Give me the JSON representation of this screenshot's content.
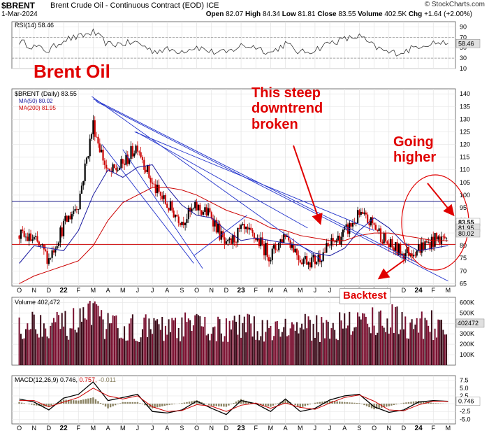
{
  "header": {
    "symbol": "$BRENT",
    "name": "Brent Crude Oil - Continuous Contract (EOD)",
    "exchange": "ICE",
    "date": "1-Mar-2024",
    "open_label": "Open",
    "open": "82.07",
    "high_label": "High",
    "high": "84.34",
    "low_label": "Low",
    "low": "81.81",
    "close_label": "Close",
    "close": "83.55",
    "volume_label": "Volume",
    "volume": "402.5K",
    "chg_label": "Chg",
    "chg": "+1.64 (+2.00%)",
    "watermark": "© StockCharts.com"
  },
  "annotations": {
    "brent": "Brent Oil",
    "steep_l1": "This steep",
    "steep_l2": "downtrend",
    "steep_l3": "broken",
    "going_l1": "Going",
    "going_l2": "higher",
    "backtest": "Backtest"
  },
  "colors": {
    "price": "#000000",
    "up_candle": "#000000",
    "down_candle": "#cc0000",
    "ma50": "#1a1aa0",
    "ma200": "#cc0000",
    "trendline": "#2233cc",
    "annotation": "#e00000",
    "volume_bar": "#7a1030",
    "macd": "#000000",
    "macd_signal": "#cc0000",
    "histogram": "#8a8262",
    "tag_bg": "#e0e0e0"
  },
  "chart_data": [
    {
      "type": "line",
      "title": "RSI(14) 58.46",
      "indicator": "RSI(14)",
      "last_value": "58.46",
      "ylim": [
        10,
        100
      ],
      "yticks": [
        "90",
        "70",
        "50",
        "30",
        "10"
      ],
      "reference_levels": [
        70,
        30
      ],
      "x": [
        "2021-10",
        "2021-11",
        "2021-12",
        "2022-01",
        "2022-02",
        "2022-03",
        "2022-04",
        "2022-05",
        "2022-06",
        "2022-07",
        "2022-08",
        "2022-09",
        "2022-10",
        "2022-11",
        "2022-12",
        "2023-01",
        "2023-02",
        "2023-03",
        "2023-04",
        "2023-05",
        "2023-06",
        "2023-07",
        "2023-08",
        "2023-09",
        "2023-10",
        "2023-11",
        "2023-12",
        "2024-01",
        "2024-02",
        "2024-03"
      ],
      "values": [
        62,
        52,
        44,
        66,
        70,
        80,
        56,
        58,
        60,
        44,
        46,
        44,
        52,
        42,
        40,
        54,
        52,
        40,
        58,
        40,
        46,
        60,
        66,
        72,
        52,
        40,
        42,
        54,
        60,
        58
      ]
    },
    {
      "type": "line",
      "title": "$BRENT (Daily) 83.55",
      "legend": [
        {
          "name": "$BRENT (Daily) 83.55"
        },
        {
          "name": "MA(50) 80.02"
        },
        {
          "name": "MA(200) 81.95"
        }
      ],
      "ylim": [
        64,
        142
      ],
      "yticks": [
        "140",
        "135",
        "130",
        "125",
        "120",
        "115",
        "110",
        "105",
        "100",
        "95",
        "90",
        "85",
        "80",
        "75",
        "70",
        "65"
      ],
      "last_value_tags": [
        "83.55",
        "81.95",
        "80.02"
      ],
      "horizontal_levels": [
        97.5,
        80.5
      ],
      "x": [
        "2021-10",
        "2021-11",
        "2021-12",
        "2022-01",
        "2022-02",
        "2022-03",
        "2022-04",
        "2022-05",
        "2022-06",
        "2022-07",
        "2022-08",
        "2022-09",
        "2022-10",
        "2022-11",
        "2022-12",
        "2023-01",
        "2023-02",
        "2023-03",
        "2023-04",
        "2023-05",
        "2023-06",
        "2023-07",
        "2023-08",
        "2023-09",
        "2023-10",
        "2023-11",
        "2023-12",
        "2024-01",
        "2024-02",
        "2024-03"
      ],
      "series": [
        {
          "name": "$BRENT (Daily) 83.55",
          "values": [
            84,
            82,
            75,
            88,
            97,
            128,
            108,
            112,
            120,
            104,
            96,
            90,
            95,
            92,
            79,
            86,
            83,
            76,
            85,
            75,
            74,
            80,
            85,
            92,
            88,
            80,
            77,
            79,
            82,
            83.55
          ]
        },
        {
          "name": "MA(50) 80.02",
          "values": [
            73,
            80,
            79,
            78,
            86,
            100,
            110,
            107,
            111,
            112,
            103,
            96,
            92,
            91,
            86,
            82,
            83,
            82,
            81,
            80,
            77,
            76,
            79,
            86,
            91,
            87,
            81,
            78,
            79,
            80.02
          ]
        },
        {
          "name": "MA(200) 81.95",
          "values": [
            65,
            68,
            70,
            72,
            74,
            80,
            90,
            97,
            100,
            103,
            103,
            102,
            100,
            97,
            94,
            92,
            90,
            87,
            86,
            84,
            83,
            82,
            82,
            84,
            85,
            85,
            84,
            83,
            82,
            81.95
          ]
        }
      ],
      "xticks": [
        "O",
        "N",
        "D",
        "22",
        "F",
        "M",
        "A",
        "M",
        "J",
        "J",
        "A",
        "S",
        "O",
        "N",
        "D",
        "23",
        "F",
        "M",
        "A",
        "M",
        "J",
        "J",
        "A",
        "S",
        "O",
        "N",
        "D",
        "24",
        "F",
        "M"
      ]
    },
    {
      "type": "bar",
      "title": "Volume 402,472",
      "indicator": "Volume",
      "last_value": "402472",
      "ylim": [
        0,
        650000
      ],
      "yticks": [
        "600K",
        "500K",
        "400K",
        "300K",
        "200K",
        "100K"
      ],
      "categories": [
        "2021-10",
        "2021-11",
        "2021-12",
        "2022-01",
        "2022-02",
        "2022-03",
        "2022-04",
        "2022-05",
        "2022-06",
        "2022-07",
        "2022-08",
        "2022-09",
        "2022-10",
        "2022-11",
        "2022-12",
        "2023-01",
        "2023-02",
        "2023-03",
        "2023-04",
        "2023-05",
        "2023-06",
        "2023-07",
        "2023-08",
        "2023-09",
        "2023-10",
        "2023-11",
        "2023-12",
        "2024-01",
        "2024-02",
        "2024-03"
      ],
      "values": [
        400000,
        410000,
        430000,
        380000,
        420000,
        470000,
        380000,
        360000,
        370000,
        360000,
        350000,
        370000,
        390000,
        360000,
        350000,
        370000,
        360000,
        380000,
        360000,
        370000,
        360000,
        380000,
        400000,
        420000,
        440000,
        450000,
        410000,
        420000,
        400000,
        402472
      ]
    },
    {
      "type": "line",
      "title": "MACD(12,26,9) 0.746, 0.757, -0.011",
      "indicator": "MACD(12,26,9)",
      "macd": "0.746",
      "signal": "0.757",
      "histogram": "-0.011",
      "ylim": [
        -6.5,
        9
      ],
      "yticks": [
        "7.5",
        "5.0",
        "2.5",
        "0.0",
        "-2.5",
        "-5.0"
      ],
      "last_value_tag": "0.746",
      "x": [
        "2021-10",
        "2021-11",
        "2021-12",
        "2022-01",
        "2022-02",
        "2022-03",
        "2022-04",
        "2022-05",
        "2022-06",
        "2022-07",
        "2022-08",
        "2022-09",
        "2022-10",
        "2022-11",
        "2022-12",
        "2023-01",
        "2023-02",
        "2023-03",
        "2023-04",
        "2023-05",
        "2023-06",
        "2023-07",
        "2023-08",
        "2023-09",
        "2023-10",
        "2023-11",
        "2023-12",
        "2024-01",
        "2024-02",
        "2024-03"
      ],
      "series": [
        {
          "name": "MACD",
          "values": [
            1.5,
            0.5,
            -2.0,
            1.8,
            3.0,
            7.0,
            1.0,
            2.0,
            3.0,
            -2.5,
            -3.0,
            -2.0,
            0.8,
            -1.5,
            -3.5,
            1.0,
            0.0,
            -2.5,
            1.5,
            -2.5,
            -1.5,
            1.2,
            2.5,
            3.0,
            -1.0,
            -2.8,
            -2.0,
            0.5,
            1.0,
            0.746
          ]
        },
        {
          "name": "Signal",
          "values": [
            1.0,
            1.0,
            -1.0,
            0.5,
            2.0,
            5.0,
            2.5,
            1.5,
            2.5,
            -1.0,
            -2.5,
            -2.2,
            -0.3,
            -0.8,
            -2.5,
            -0.5,
            0.2,
            -1.5,
            0.2,
            -1.2,
            -1.8,
            0.2,
            2.0,
            2.8,
            0.8,
            -2.0,
            -2.3,
            -0.4,
            0.8,
            0.757
          ]
        }
      ]
    }
  ]
}
